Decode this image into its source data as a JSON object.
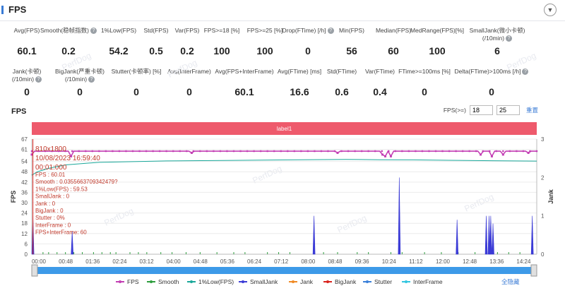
{
  "header": {
    "title": "FPS"
  },
  "metrics_row1": [
    {
      "label": "Avg(FPS)",
      "value": "60.1"
    },
    {
      "label": "Smooth(稳帧指数)",
      "value": "0.2",
      "help": true
    },
    {
      "label": "1%Low(FPS)",
      "value": "54.2"
    },
    {
      "label": "Std(FPS)",
      "value": "0.5"
    },
    {
      "label": "Var(FPS)",
      "value": "0.2"
    },
    {
      "label": "FPS>=18 [%]",
      "value": "100"
    },
    {
      "label": "FPS>=25 [%]",
      "value": "100"
    },
    {
      "label": "Drop(FTime) [/h]",
      "value": "0",
      "help": true
    },
    {
      "label": "Min(FPS)",
      "value": "56"
    },
    {
      "label": "Median(FPS)",
      "value": "60"
    },
    {
      "label": "MedRange(FPS)[%]",
      "value": "100"
    },
    {
      "label": "SmallJank(微小卡顿)",
      "label2": "(/10min)",
      "value": "6",
      "help": true
    }
  ],
  "metrics_row2": [
    {
      "label": "Jank(卡顿)",
      "label2": "(/10min)",
      "value": "0",
      "help": true
    },
    {
      "label": "BigJank(严重卡顿)",
      "label2": "(/10min)",
      "value": "0",
      "help": true
    },
    {
      "label": "Stutter(卡顿率) [%]",
      "value": "0"
    },
    {
      "label": "Avg(InterFrame)",
      "value": "0"
    },
    {
      "label": "Avg(FPS+InterFrame)",
      "value": "60.1"
    },
    {
      "label": "Avg(FTime) [ms]",
      "value": "16.6"
    },
    {
      "label": "Std(FTime)",
      "value": "0.6"
    },
    {
      "label": "Var(FTime)",
      "value": "0.4"
    },
    {
      "label": "FTime>=100ms [%]",
      "value": "0"
    },
    {
      "label": "Delta(FTime)>100ms [/h]",
      "value": "0",
      "help": true
    }
  ],
  "chart_title": "FPS",
  "fps_ctrl": {
    "label": "FPS(>=)",
    "v1": "18",
    "v2": "25",
    "reset": "重置"
  },
  "chart_data": {
    "type": "line",
    "band_label": "label1",
    "ylabel_left": "FPS",
    "ylabel_right": "Jank",
    "y_ticks": [
      0,
      6,
      12,
      18,
      24,
      30,
      36,
      42,
      48,
      54,
      61,
      67
    ],
    "y_right_ticks": [
      0,
      1,
      2,
      3
    ],
    "x_ticks": [
      "00:00",
      "00:48",
      "01:36",
      "02:24",
      "03:12",
      "04:00",
      "04:48",
      "05:36",
      "06:24",
      "07:12",
      "08:00",
      "08:48",
      "09:36",
      "10:24",
      "11:12",
      "12:00",
      "12:48",
      "13:36",
      "14:24"
    ],
    "x_range_seconds": [
      0,
      900
    ],
    "ylim": [
      0,
      67
    ],
    "ylim_right": [
      0,
      3
    ],
    "series": [
      {
        "name": "FPS",
        "color": "#c33fb4",
        "level": 60,
        "dips": [
          [
            0,
            58
          ],
          [
            70,
            57
          ],
          [
            285,
            59
          ],
          [
            545,
            59
          ],
          [
            625,
            58
          ],
          [
            630,
            57
          ],
          [
            640,
            57
          ],
          [
            800,
            58
          ],
          [
            820,
            57
          ],
          [
            840,
            58
          ],
          [
            885,
            59
          ]
        ]
      },
      {
        "name": "Smooth",
        "color": "#2e9e3e"
      },
      {
        "name": "1%Low(FPS)",
        "color": "#1aa89a",
        "points": [
          [
            0,
            46
          ],
          [
            10,
            48
          ],
          [
            30,
            50
          ],
          [
            60,
            52
          ],
          [
            120,
            53.5
          ],
          [
            240,
            54.3
          ],
          [
            360,
            54.6
          ],
          [
            480,
            55
          ],
          [
            560,
            55.2
          ],
          [
            620,
            55
          ],
          [
            680,
            54.9
          ],
          [
            760,
            54.6
          ],
          [
            820,
            54.4
          ],
          [
            900,
            54.2
          ]
        ]
      },
      {
        "name": "SmallJank",
        "color": "#3b3bd6",
        "spikes": [
          [
            2,
            1
          ],
          [
            72,
            0.6
          ],
          [
            503,
            1
          ],
          [
            655,
            2
          ],
          [
            758,
            0.9
          ],
          [
            810,
            1
          ],
          [
            815,
            1
          ],
          [
            818,
            1
          ],
          [
            822,
            0.8
          ],
          [
            892,
            1
          ]
        ]
      },
      {
        "name": "Jank",
        "color": "#f08a24"
      },
      {
        "name": "BigJank",
        "color": "#d9231d"
      },
      {
        "name": "Stutter",
        "color": "#3a80d9"
      },
      {
        "name": "InterFrame",
        "color": "#33c6e0"
      }
    ],
    "tooltip": [
      "810x1800",
      "10/08/2023 16:59:40",
      "00:01:000",
      "FPS          : 60.01",
      "Smooth       : 0.0355663709342479?",
      "1%Low(FPS)   : 59.53",
      "SmallJank    : 0",
      "Jank         : 0",
      "BigJank      : 0",
      "Stutter      : 0%",
      "InterFrame   : 0",
      "FPS+InterFrame: 60"
    ],
    "legend_position": "bottom",
    "legend_action": "全隐藏",
    "watermark": "PerfDog"
  }
}
